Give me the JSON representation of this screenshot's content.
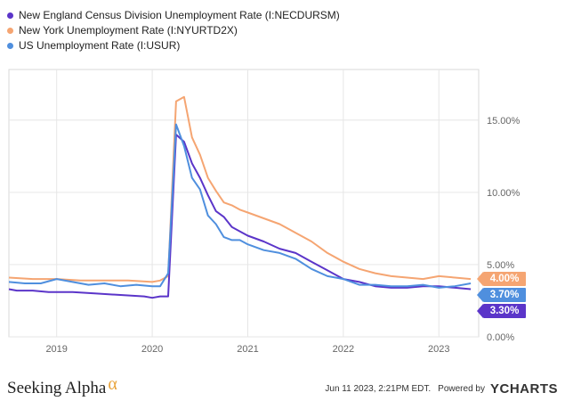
{
  "chart_data": {
    "type": "line",
    "x_range": [
      "2018-07",
      "2023-06"
    ],
    "ylim": [
      0,
      18.5
    ],
    "y_ticks": [
      {
        "value": 0,
        "label": "0.00%"
      },
      {
        "value": 5,
        "label": "5.00%"
      },
      {
        "value": 10,
        "label": "10.00%"
      },
      {
        "value": 15,
        "label": "15.00%"
      }
    ],
    "x_ticks": [
      {
        "date": "2019-01",
        "label": "2019"
      },
      {
        "date": "2020-01",
        "label": "2020"
      },
      {
        "date": "2021-01",
        "label": "2021"
      },
      {
        "date": "2022-01",
        "label": "2022"
      },
      {
        "date": "2023-01",
        "label": "2023"
      }
    ],
    "grid": true,
    "legend_position": "top-left",
    "series": [
      {
        "name": "New England Census Division Unemployment Rate (I:NECDURSM)",
        "color": "#5b35c9",
        "last_label": "3.30%",
        "points": [
          [
            "2018-07",
            3.3
          ],
          [
            "2018-08",
            3.2
          ],
          [
            "2018-10",
            3.2
          ],
          [
            "2018-12",
            3.1
          ],
          [
            "2019-03",
            3.1
          ],
          [
            "2019-06",
            3.0
          ],
          [
            "2019-09",
            2.9
          ],
          [
            "2019-12",
            2.8
          ],
          [
            "2020-01",
            2.7
          ],
          [
            "2020-02",
            2.8
          ],
          [
            "2020-03",
            2.8
          ],
          [
            "2020-04",
            14.0
          ],
          [
            "2020-05",
            13.5
          ],
          [
            "2020-06",
            12.0
          ],
          [
            "2020-07",
            11.0
          ],
          [
            "2020-08",
            9.8
          ],
          [
            "2020-09",
            8.7
          ],
          [
            "2020-10",
            8.3
          ],
          [
            "2020-11",
            7.6
          ],
          [
            "2020-12",
            7.3
          ],
          [
            "2021-01",
            7.0
          ],
          [
            "2021-03",
            6.6
          ],
          [
            "2021-05",
            6.1
          ],
          [
            "2021-07",
            5.8
          ],
          [
            "2021-09",
            5.2
          ],
          [
            "2021-11",
            4.6
          ],
          [
            "2022-01",
            4.0
          ],
          [
            "2022-03",
            3.8
          ],
          [
            "2022-05",
            3.5
          ],
          [
            "2022-07",
            3.4
          ],
          [
            "2022-09",
            3.4
          ],
          [
            "2022-11",
            3.5
          ],
          [
            "2023-01",
            3.5
          ],
          [
            "2023-03",
            3.4
          ],
          [
            "2023-05",
            3.3
          ]
        ]
      },
      {
        "name": "New York Unemployment Rate (I:NYURTD2X)",
        "color": "#f5a572",
        "last_label": "4.00%",
        "points": [
          [
            "2018-07",
            4.1
          ],
          [
            "2018-10",
            4.0
          ],
          [
            "2019-01",
            4.0
          ],
          [
            "2019-04",
            3.9
          ],
          [
            "2019-07",
            3.9
          ],
          [
            "2019-10",
            3.9
          ],
          [
            "2020-01",
            3.8
          ],
          [
            "2020-02",
            3.9
          ],
          [
            "2020-03",
            4.2
          ],
          [
            "2020-04",
            16.3
          ],
          [
            "2020-05",
            16.6
          ],
          [
            "2020-06",
            13.8
          ],
          [
            "2020-07",
            12.6
          ],
          [
            "2020-08",
            11.0
          ],
          [
            "2020-09",
            10.1
          ],
          [
            "2020-10",
            9.3
          ],
          [
            "2020-11",
            9.1
          ],
          [
            "2020-12",
            8.8
          ],
          [
            "2021-01",
            8.6
          ],
          [
            "2021-03",
            8.2
          ],
          [
            "2021-05",
            7.8
          ],
          [
            "2021-07",
            7.2
          ],
          [
            "2021-09",
            6.6
          ],
          [
            "2021-11",
            5.8
          ],
          [
            "2022-01",
            5.2
          ],
          [
            "2022-03",
            4.7
          ],
          [
            "2022-05",
            4.4
          ],
          [
            "2022-07",
            4.2
          ],
          [
            "2022-09",
            4.1
          ],
          [
            "2022-11",
            4.0
          ],
          [
            "2023-01",
            4.2
          ],
          [
            "2023-03",
            4.1
          ],
          [
            "2023-05",
            4.0
          ]
        ]
      },
      {
        "name": "US Unemployment Rate (I:USUR)",
        "color": "#4f8fde",
        "last_label": "3.70%",
        "points": [
          [
            "2018-07",
            3.8
          ],
          [
            "2018-09",
            3.7
          ],
          [
            "2018-11",
            3.7
          ],
          [
            "2019-01",
            4.0
          ],
          [
            "2019-03",
            3.8
          ],
          [
            "2019-05",
            3.6
          ],
          [
            "2019-07",
            3.7
          ],
          [
            "2019-09",
            3.5
          ],
          [
            "2019-11",
            3.6
          ],
          [
            "2020-01",
            3.5
          ],
          [
            "2020-02",
            3.5
          ],
          [
            "2020-03",
            4.4
          ],
          [
            "2020-04",
            14.7
          ],
          [
            "2020-05",
            13.2
          ],
          [
            "2020-06",
            11.0
          ],
          [
            "2020-07",
            10.2
          ],
          [
            "2020-08",
            8.4
          ],
          [
            "2020-09",
            7.8
          ],
          [
            "2020-10",
            6.9
          ],
          [
            "2020-11",
            6.7
          ],
          [
            "2020-12",
            6.7
          ],
          [
            "2021-01",
            6.4
          ],
          [
            "2021-03",
            6.0
          ],
          [
            "2021-05",
            5.8
          ],
          [
            "2021-07",
            5.4
          ],
          [
            "2021-09",
            4.7
          ],
          [
            "2021-11",
            4.2
          ],
          [
            "2022-01",
            4.0
          ],
          [
            "2022-03",
            3.6
          ],
          [
            "2022-05",
            3.6
          ],
          [
            "2022-07",
            3.5
          ],
          [
            "2022-09",
            3.5
          ],
          [
            "2022-11",
            3.6
          ],
          [
            "2023-01",
            3.4
          ],
          [
            "2023-03",
            3.5
          ],
          [
            "2023-05",
            3.7
          ]
        ]
      }
    ]
  },
  "footer": {
    "brand": "Seeking Alpha",
    "brand_mark": "α",
    "timestamp": "Jun 11 2023, 2:21PM EDT.",
    "powered_by": "Powered by",
    "provider_mark": "Y",
    "provider_name": "CHARTS"
  }
}
